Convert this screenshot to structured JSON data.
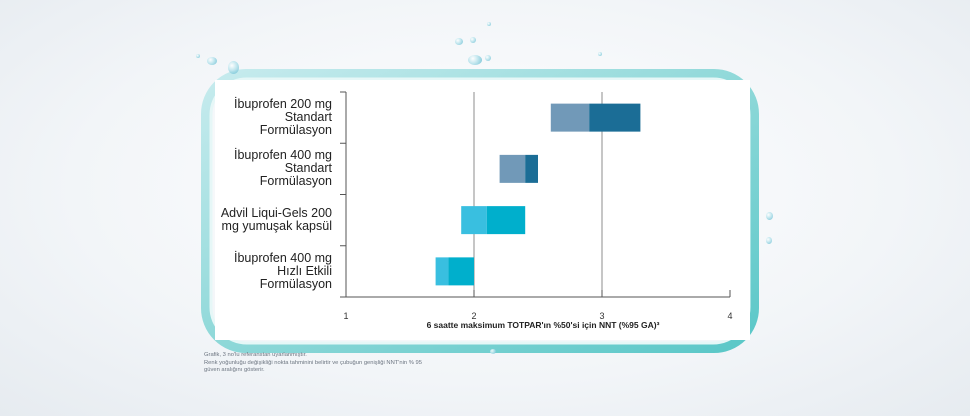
{
  "chart_data": {
    "type": "range-bar",
    "categories": [
      "İbuprofen 200 mg\nStandart\nFormülasyon",
      "İbuprofen 400 mg\nStandart\nFormülasyon",
      "Advil Liqui-Gels 200\nmg yumuşak kapsül",
      "İbuprofen 400 mg\nHızlı Etkili\nFormülasyon"
    ],
    "series": [
      {
        "low": 2.6,
        "point": 2.9,
        "high": 3.3
      },
      {
        "low": 2.2,
        "point": 2.4,
        "high": 2.5
      },
      {
        "low": 1.9,
        "point": 2.1,
        "high": 2.4
      },
      {
        "low": 1.7,
        "point": 1.8,
        "high": 2.0
      }
    ],
    "xlim": [
      1,
      4
    ],
    "xticks": [
      "1",
      "2",
      "3",
      "4"
    ],
    "gridlines_at": [
      2,
      3
    ],
    "xlabel": "6 saatte maksimum TOTPAR'ın %50'si için NNT (%95 GA)³",
    "colors": {
      "standard_low": "#7199b8",
      "standard_high": "#1b6d96",
      "fast_low": "#39bfe0",
      "fast_high": "#00afcc"
    }
  },
  "footnote": "Grafik, 3 no'lu referanstan uyarlanmıştır.\nRenk yoğunluğu değişikliği nokta tahminini belirtir ve çubuğun genişliği NNT'nin % 95\ngüven aralığını gösterir."
}
